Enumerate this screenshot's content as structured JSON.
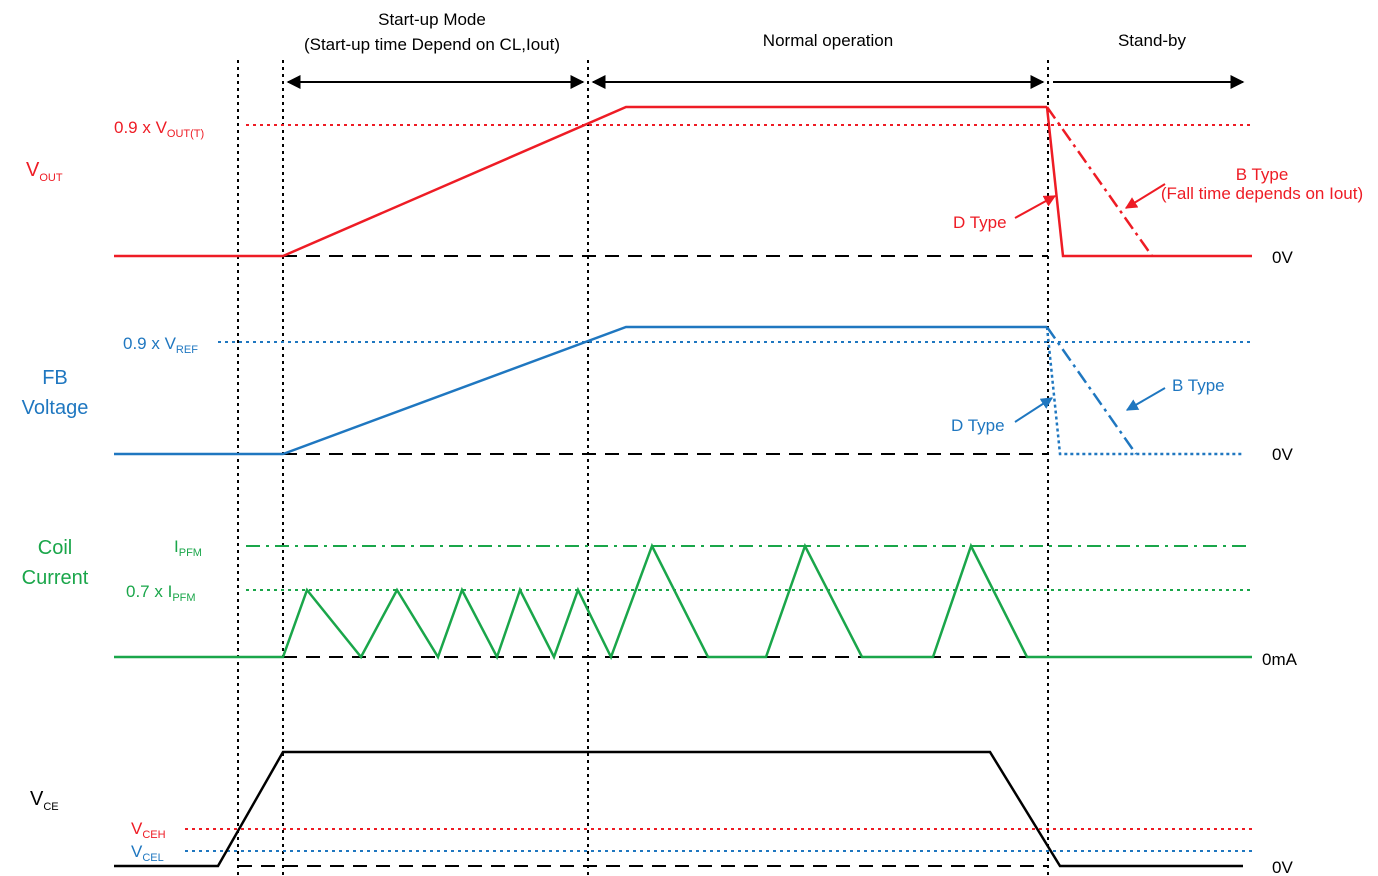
{
  "colors": {
    "vout": "#ee1c25",
    "fb": "#1f77c0",
    "coil": "#1aa64a",
    "vce": "#000000",
    "vceh": "#ee1c25",
    "vcel": "#1f77c0"
  },
  "phases": {
    "startup_line1": "Start-up Mode",
    "startup_line2": "(Start-up time Depend on CL,Iout)",
    "normal": "Normal operation",
    "standby": "Stand-by"
  },
  "signals": {
    "vout": {
      "name_main": "V",
      "name_sub": "OUT",
      "threshold_prefix": "0.9 x V",
      "threshold_sub": "OUT(T)",
      "zero": "0V",
      "d_type": "D Type",
      "b_type": "B Type",
      "b_type_note": "(Fall time depends on Iout)"
    },
    "fb": {
      "name_line1": "FB",
      "name_line2": "Voltage",
      "threshold_prefix": "0.9 x V",
      "threshold_sub": "REF",
      "zero": "0V",
      "d_type": "D Type",
      "b_type": "B Type"
    },
    "coil": {
      "name_line1": "Coil",
      "name_line2": "Current",
      "ipfm_main": "I",
      "ipfm_sub": "PFM",
      "threshold_prefix": "0.7 x I",
      "threshold_sub": "PFM",
      "zero": "0mA"
    },
    "vce": {
      "name_main": "V",
      "name_sub": "CE",
      "vceh_main": "V",
      "vceh_sub": "CEH",
      "vcel_main": "V",
      "vcel_sub": "CEL",
      "zero": "0V"
    }
  }
}
